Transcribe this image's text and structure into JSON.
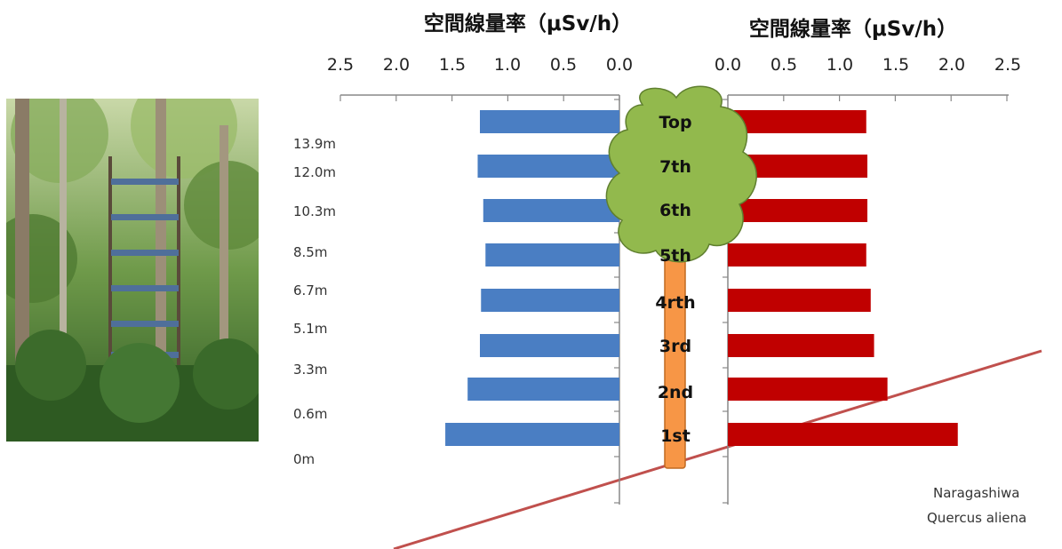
{
  "chart_data": {
    "type": "bar",
    "orientation": "horizontal",
    "charts": [
      {
        "title": "空間線量率（μSv/h）",
        "direction": "left",
        "ticks": [
          "2.5",
          "2.0",
          "1.5",
          "1.0",
          "0.5",
          "0.0"
        ],
        "xlim": [
          0,
          2.5
        ],
        "color": "#4A7EC3"
      },
      {
        "title": "空間線量率（μSv/h）",
        "direction": "right",
        "ticks": [
          "0.0",
          "0.5",
          "1.0",
          "1.5",
          "2.0",
          "2.5"
        ],
        "xlim": [
          0,
          2.5
        ],
        "color": "#C00000"
      }
    ],
    "categories": [
      "Top",
      "7th",
      "6th",
      "5th",
      "4rth",
      "3rd",
      "2nd",
      "1st"
    ],
    "heights": [
      "13.9m",
      "12.0m",
      "10.3m",
      "8.5m",
      "6.7m",
      "5.1m",
      "3.3m",
      "0.6m",
      "0m"
    ],
    "series": [
      {
        "values": [
          1.25,
          1.27,
          1.22,
          1.2,
          1.24,
          1.25,
          1.36,
          1.56
        ]
      },
      {
        "values": [
          1.24,
          1.25,
          1.25,
          1.24,
          1.28,
          1.31,
          1.43,
          2.06
        ]
      }
    ]
  },
  "species": {
    "line1": "Naragashiwa",
    "line2": "Quercus aliena"
  },
  "colors": {
    "tree_crown": "#92B94D",
    "tree_trunk": "#F79646",
    "ground_line": "#C0504D"
  }
}
